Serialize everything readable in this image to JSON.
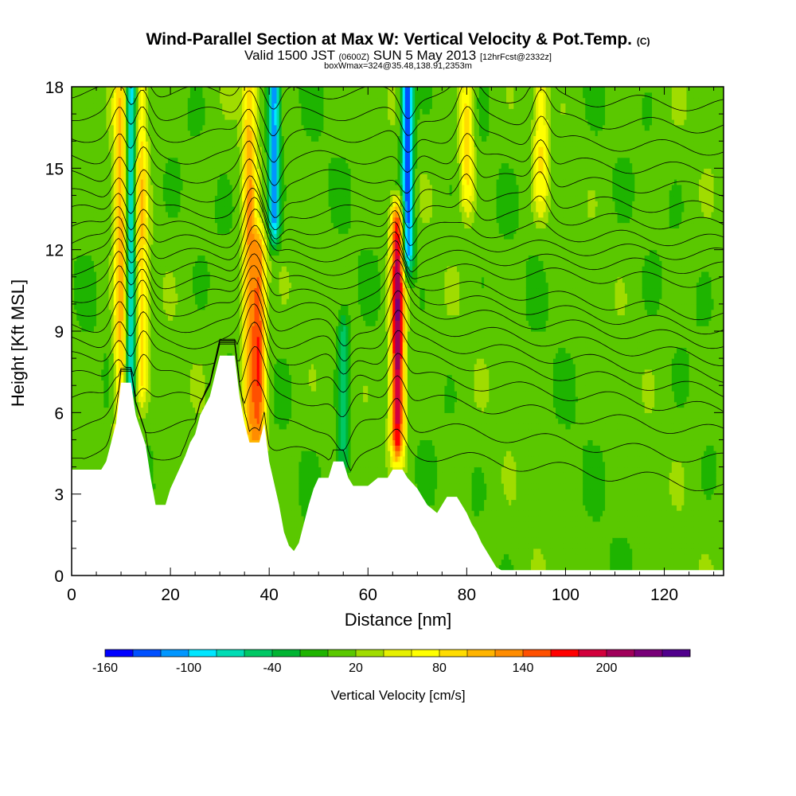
{
  "title_main": "Wind-Parallel Section at Max W: Vertical Velocity & Pot.Temp.",
  "title_copy": "(C)",
  "subtitle_a": "Valid 1500 JST",
  "subtitle_b": "(0600Z)",
  "subtitle_c": "SUN 5 May 2013",
  "subtitle_d": "[12hrFcst@2332z]",
  "subtitle_box": "boxWmax=324@35.48,138.91,2353m",
  "chart_data": {
    "type": "heatmap",
    "xlabel": "Distance [nm]",
    "ylabel": "Height [Kft MSL]",
    "xlim": [
      0,
      132
    ],
    "ylim": [
      0,
      18
    ],
    "x_ticks": [
      "0",
      "20",
      "40",
      "60",
      "80",
      "100",
      "120"
    ],
    "y_ticks": [
      "0",
      "3",
      "6",
      "9",
      "12",
      "15",
      "18"
    ],
    "colorbar": {
      "label": "Vertical Velocity [cm/s]",
      "tick_labels": [
        "-160",
        "-100",
        "-40",
        "20",
        "80",
        "140",
        "200"
      ],
      "levels": [
        -160,
        -140,
        -120,
        -100,
        -80,
        -60,
        -40,
        -20,
        0,
        20,
        40,
        60,
        80,
        100,
        120,
        140,
        160,
        180,
        200,
        220,
        240
      ],
      "colors": [
        "#0000ff",
        "#0050ff",
        "#0096ff",
        "#00e6ff",
        "#00dcb4",
        "#00c864",
        "#00b432",
        "#1eb400",
        "#5ac800",
        "#a0dc00",
        "#e6f000",
        "#ffff00",
        "#ffdc00",
        "#ffb400",
        "#ff8c00",
        "#ff5000",
        "#ff0000",
        "#d2003c",
        "#a0005a",
        "#780078",
        "#50008c"
      ]
    },
    "terrain_kft": [
      [
        0,
        3.9
      ],
      [
        6,
        3.9
      ],
      [
        7,
        4.2
      ],
      [
        8,
        4.9
      ],
      [
        9,
        5.6
      ],
      [
        10,
        7.1
      ],
      [
        12,
        7.1
      ],
      [
        13,
        5.9
      ],
      [
        15,
        4.8
      ],
      [
        16,
        3.6
      ],
      [
        17,
        2.6
      ],
      [
        19,
        2.6
      ],
      [
        20,
        3.2
      ],
      [
        21,
        3.6
      ],
      [
        23,
        4.4
      ],
      [
        24,
        4.9
      ],
      [
        25,
        5.2
      ],
      [
        26,
        5.9
      ],
      [
        28,
        6.6
      ],
      [
        30,
        8.1
      ],
      [
        33,
        8.1
      ],
      [
        34,
        6.6
      ],
      [
        35,
        5.6
      ],
      [
        36,
        4.9
      ],
      [
        38,
        4.9
      ],
      [
        39,
        5.6
      ],
      [
        40,
        4.2
      ],
      [
        41,
        3.4
      ],
      [
        42,
        2.6
      ],
      [
        43,
        1.6
      ],
      [
        44,
        1.1
      ],
      [
        45,
        0.9
      ],
      [
        46,
        1.2
      ],
      [
        47,
        1.9
      ],
      [
        48,
        2.6
      ],
      [
        49,
        3.2
      ],
      [
        50,
        3.6
      ],
      [
        52,
        3.6
      ],
      [
        53,
        4.2
      ],
      [
        55,
        4.2
      ],
      [
        56,
        3.6
      ],
      [
        57,
        3.3
      ],
      [
        60,
        3.3
      ],
      [
        62,
        3.6
      ],
      [
        64,
        3.6
      ],
      [
        65,
        3.9
      ],
      [
        67,
        3.9
      ],
      [
        68,
        3.6
      ],
      [
        70,
        3.2
      ],
      [
        71,
        2.9
      ],
      [
        72,
        2.6
      ],
      [
        74,
        2.3
      ],
      [
        75,
        2.6
      ],
      [
        76,
        2.9
      ],
      [
        78,
        2.9
      ],
      [
        79,
        2.6
      ],
      [
        80,
        2.3
      ],
      [
        81,
        1.9
      ],
      [
        82,
        1.6
      ],
      [
        83,
        1.2
      ],
      [
        84,
        0.9
      ],
      [
        85,
        0.6
      ],
      [
        86,
        0.3
      ],
      [
        87,
        0.2
      ],
      [
        132,
        0.2
      ]
    ],
    "updraft_columns": [
      {
        "x": 10,
        "peak": 110,
        "lo": 5,
        "hi": 18
      },
      {
        "x": 14,
        "peak": 90,
        "lo": 7,
        "hi": 18
      },
      {
        "x": 36,
        "peak": 110,
        "lo": 5,
        "hi": 18
      },
      {
        "x": 38,
        "peak": 140,
        "lo": 5,
        "hi": 12
      },
      {
        "x": 66,
        "peak": 220,
        "lo": 5,
        "hi": 13
      },
      {
        "x": 80,
        "peak": 90,
        "lo": 14,
        "hi": 18
      },
      {
        "x": 95,
        "peak": 70,
        "lo": 14,
        "hi": 18
      }
    ],
    "downdraft_columns": [
      {
        "x": 12,
        "peak": -110,
        "lo": 7,
        "hi": 18
      },
      {
        "x": 41,
        "peak": -120,
        "lo": 13,
        "hi": 18
      },
      {
        "x": 55,
        "peak": -60,
        "lo": 4,
        "hi": 9
      },
      {
        "x": 68,
        "peak": -150,
        "lo": 12,
        "hi": 18
      }
    ]
  }
}
